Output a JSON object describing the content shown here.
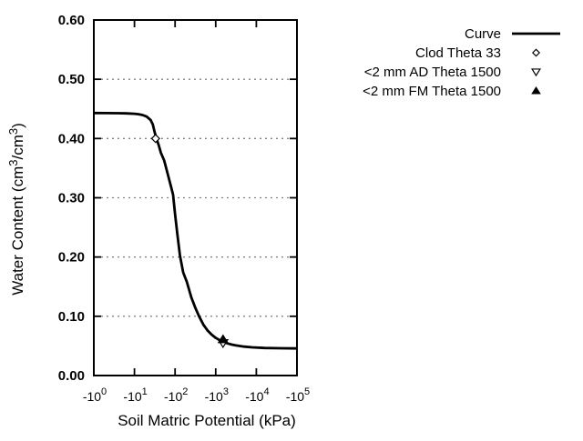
{
  "chart_data": {
    "type": "line",
    "title": "",
    "xlabel": "Soil Matric Potential (kPa)",
    "ylabel": "Water Content (cm³/cm³)",
    "ylabel_parts": [
      {
        "text": "Water Content (cm",
        "sup": false
      },
      {
        "text": "3",
        "sup": true
      },
      {
        "text": "/cm",
        "sup": false
      },
      {
        "text": "3",
        "sup": true
      },
      {
        "text": ")",
        "sup": false
      }
    ],
    "x_axis": {
      "scale": "log10 of negative kPa",
      "decades": [
        0,
        5
      ],
      "ticks": [
        {
          "log": 0,
          "base": "-10",
          "exp": "0"
        },
        {
          "log": 1,
          "base": "-10",
          "exp": "1"
        },
        {
          "log": 2,
          "base": "-10",
          "exp": "2"
        },
        {
          "log": 3,
          "base": "-10",
          "exp": "3"
        },
        {
          "log": 4,
          "base": "-10",
          "exp": "4"
        },
        {
          "log": 5,
          "base": "-10",
          "exp": "5"
        }
      ]
    },
    "y_axis": {
      "range": [
        0,
        0.6
      ],
      "ticks": [
        {
          "value": 0.0,
          "label": "0.00"
        },
        {
          "value": 0.1,
          "label": "0.10"
        },
        {
          "value": 0.2,
          "label": "0.20"
        },
        {
          "value": 0.3,
          "label": "0.30"
        },
        {
          "value": 0.4,
          "label": "0.40"
        },
        {
          "value": 0.5,
          "label": "0.50"
        },
        {
          "value": 0.6,
          "label": "0.60"
        }
      ],
      "grid_at": [
        0.1,
        0.2,
        0.3,
        0.4,
        0.5
      ]
    },
    "grid": "horizontal dotted",
    "series": [
      {
        "name": "Curve",
        "type": "line",
        "points": [
          [
            0.0,
            0.443
          ],
          [
            0.3,
            0.4429
          ],
          [
            0.6,
            0.4427
          ],
          [
            0.8,
            0.4424
          ],
          [
            1.0,
            0.4418
          ],
          [
            1.1,
            0.441
          ],
          [
            1.2,
            0.4396
          ],
          [
            1.3,
            0.437
          ],
          [
            1.4,
            0.431
          ],
          [
            1.45,
            0.424
          ],
          [
            1.5,
            0.41
          ],
          [
            1.55,
            0.3985
          ],
          [
            1.6,
            0.388
          ],
          [
            1.65,
            0.376
          ],
          [
            1.73,
            0.363
          ],
          [
            1.8,
            0.345
          ],
          [
            1.9,
            0.319
          ],
          [
            1.95,
            0.305
          ],
          [
            2.0,
            0.272
          ],
          [
            2.06,
            0.236
          ],
          [
            2.12,
            0.202
          ],
          [
            2.2,
            0.174
          ],
          [
            2.29,
            0.158
          ],
          [
            2.4,
            0.132
          ],
          [
            2.5,
            0.114
          ],
          [
            2.59,
            0.1
          ],
          [
            2.7,
            0.0855
          ],
          [
            2.8,
            0.076
          ],
          [
            2.9,
            0.069
          ],
          [
            3.0,
            0.0635
          ],
          [
            3.1,
            0.0595
          ],
          [
            3.2,
            0.0565
          ],
          [
            3.3,
            0.054
          ],
          [
            3.4,
            0.0522
          ],
          [
            3.5,
            0.0508
          ],
          [
            3.7,
            0.0488
          ],
          [
            3.9,
            0.0475
          ],
          [
            4.2,
            0.0465
          ],
          [
            4.6,
            0.046
          ],
          [
            5.0,
            0.0457
          ]
        ]
      },
      {
        "name": "Clod Theta 33",
        "type": "points",
        "marker": "open-diamond",
        "data": [
          {
            "kpa": -33,
            "log10_abs_kpa": 1.52,
            "theta": 0.4
          }
        ]
      },
      {
        "name": "<2 mm AD Theta 1500",
        "type": "points",
        "marker": "open-triangle-down",
        "data": [
          {
            "kpa": -1500,
            "log10_abs_kpa": 3.18,
            "theta": 0.055
          }
        ]
      },
      {
        "name": "<2 mm FM Theta 1500",
        "type": "points",
        "marker": "filled-triangle-up",
        "data": [
          {
            "kpa": -1500,
            "log10_abs_kpa": 3.18,
            "theta": 0.061
          }
        ]
      }
    ],
    "legend": {
      "position": "top-right-outside",
      "entries": [
        {
          "label": "Curve",
          "marker": "line"
        },
        {
          "label": "Clod Theta 33",
          "marker": "open-diamond"
        },
        {
          "label": "<2 mm AD Theta 1500",
          "marker": "open-triangle-down"
        },
        {
          "label": "<2 mm FM Theta 1500",
          "marker": "filled-triangle-up"
        }
      ]
    },
    "colors": {
      "foreground": "#000000",
      "grid": "#848484",
      "background": "#ffffff"
    }
  }
}
